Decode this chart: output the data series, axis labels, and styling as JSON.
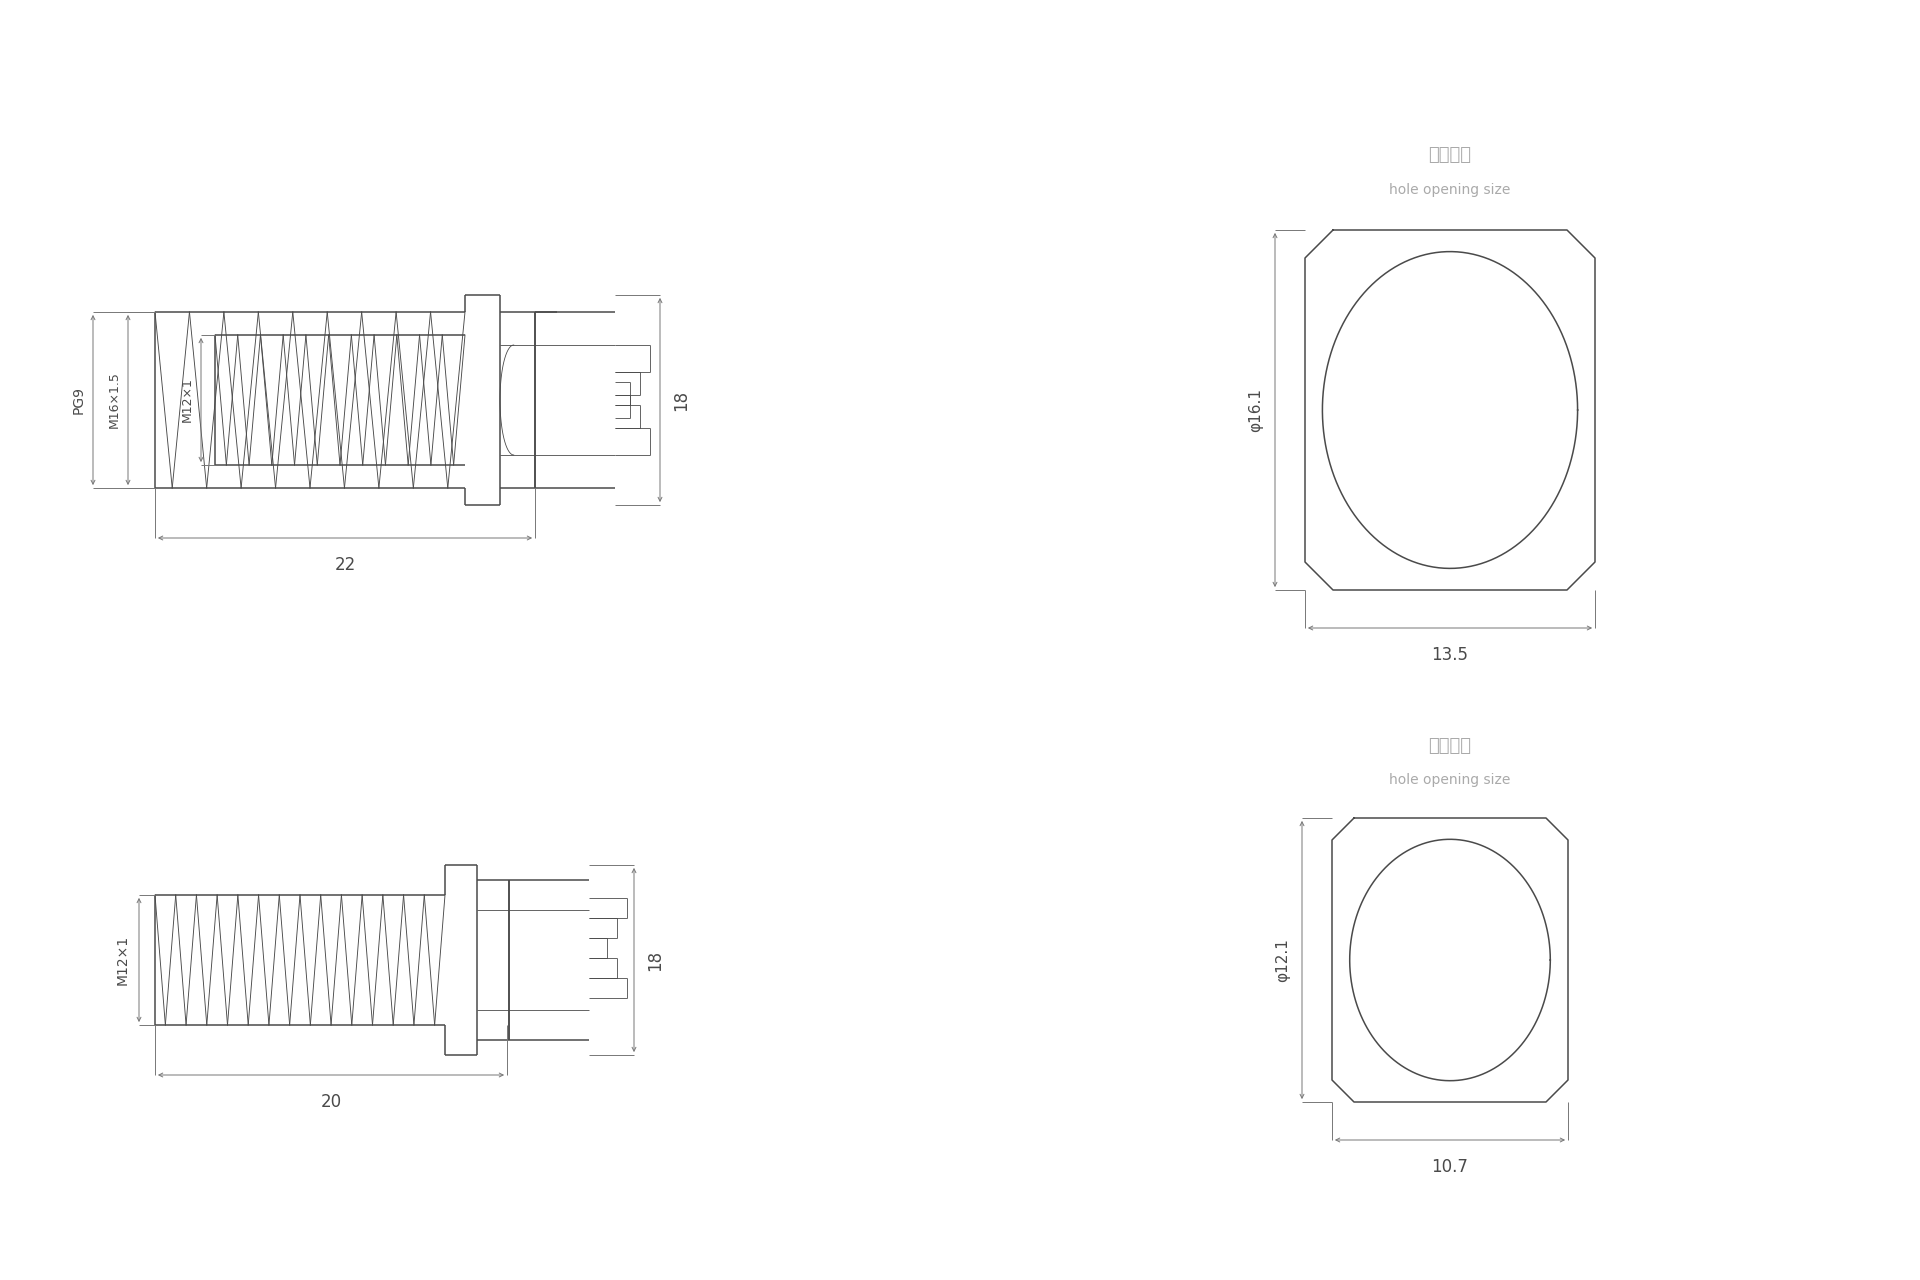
{
  "bg_color": "#ffffff",
  "line_color": "#4a4a4a",
  "dim_color": "#777777",
  "text_color": "#4a4a4a",
  "title_color": "#aaaaaa",
  "figsize": [
    19.2,
    12.8
  ],
  "dpi": 100,
  "annotations": {
    "top_pg9_label": "PG9",
    "top_m16_label": "M16×1.5",
    "top_m12_label": "M12×1",
    "top_dim_18": "18",
    "top_dim_22": "22",
    "bot_m12_label": "M12×1",
    "bot_dim_18": "18",
    "bot_dim_20": "20",
    "top_hole_title_cn": "开孔尺寸",
    "top_hole_title_en": "hole opening size",
    "top_hole_dia": "φ16.1",
    "top_hole_width": "13.5",
    "bot_hole_title_cn": "开孔尺寸",
    "bot_hole_title_en": "hole opening size",
    "bot_hole_dia": "φ12.1",
    "bot_hole_width": "10.7"
  }
}
